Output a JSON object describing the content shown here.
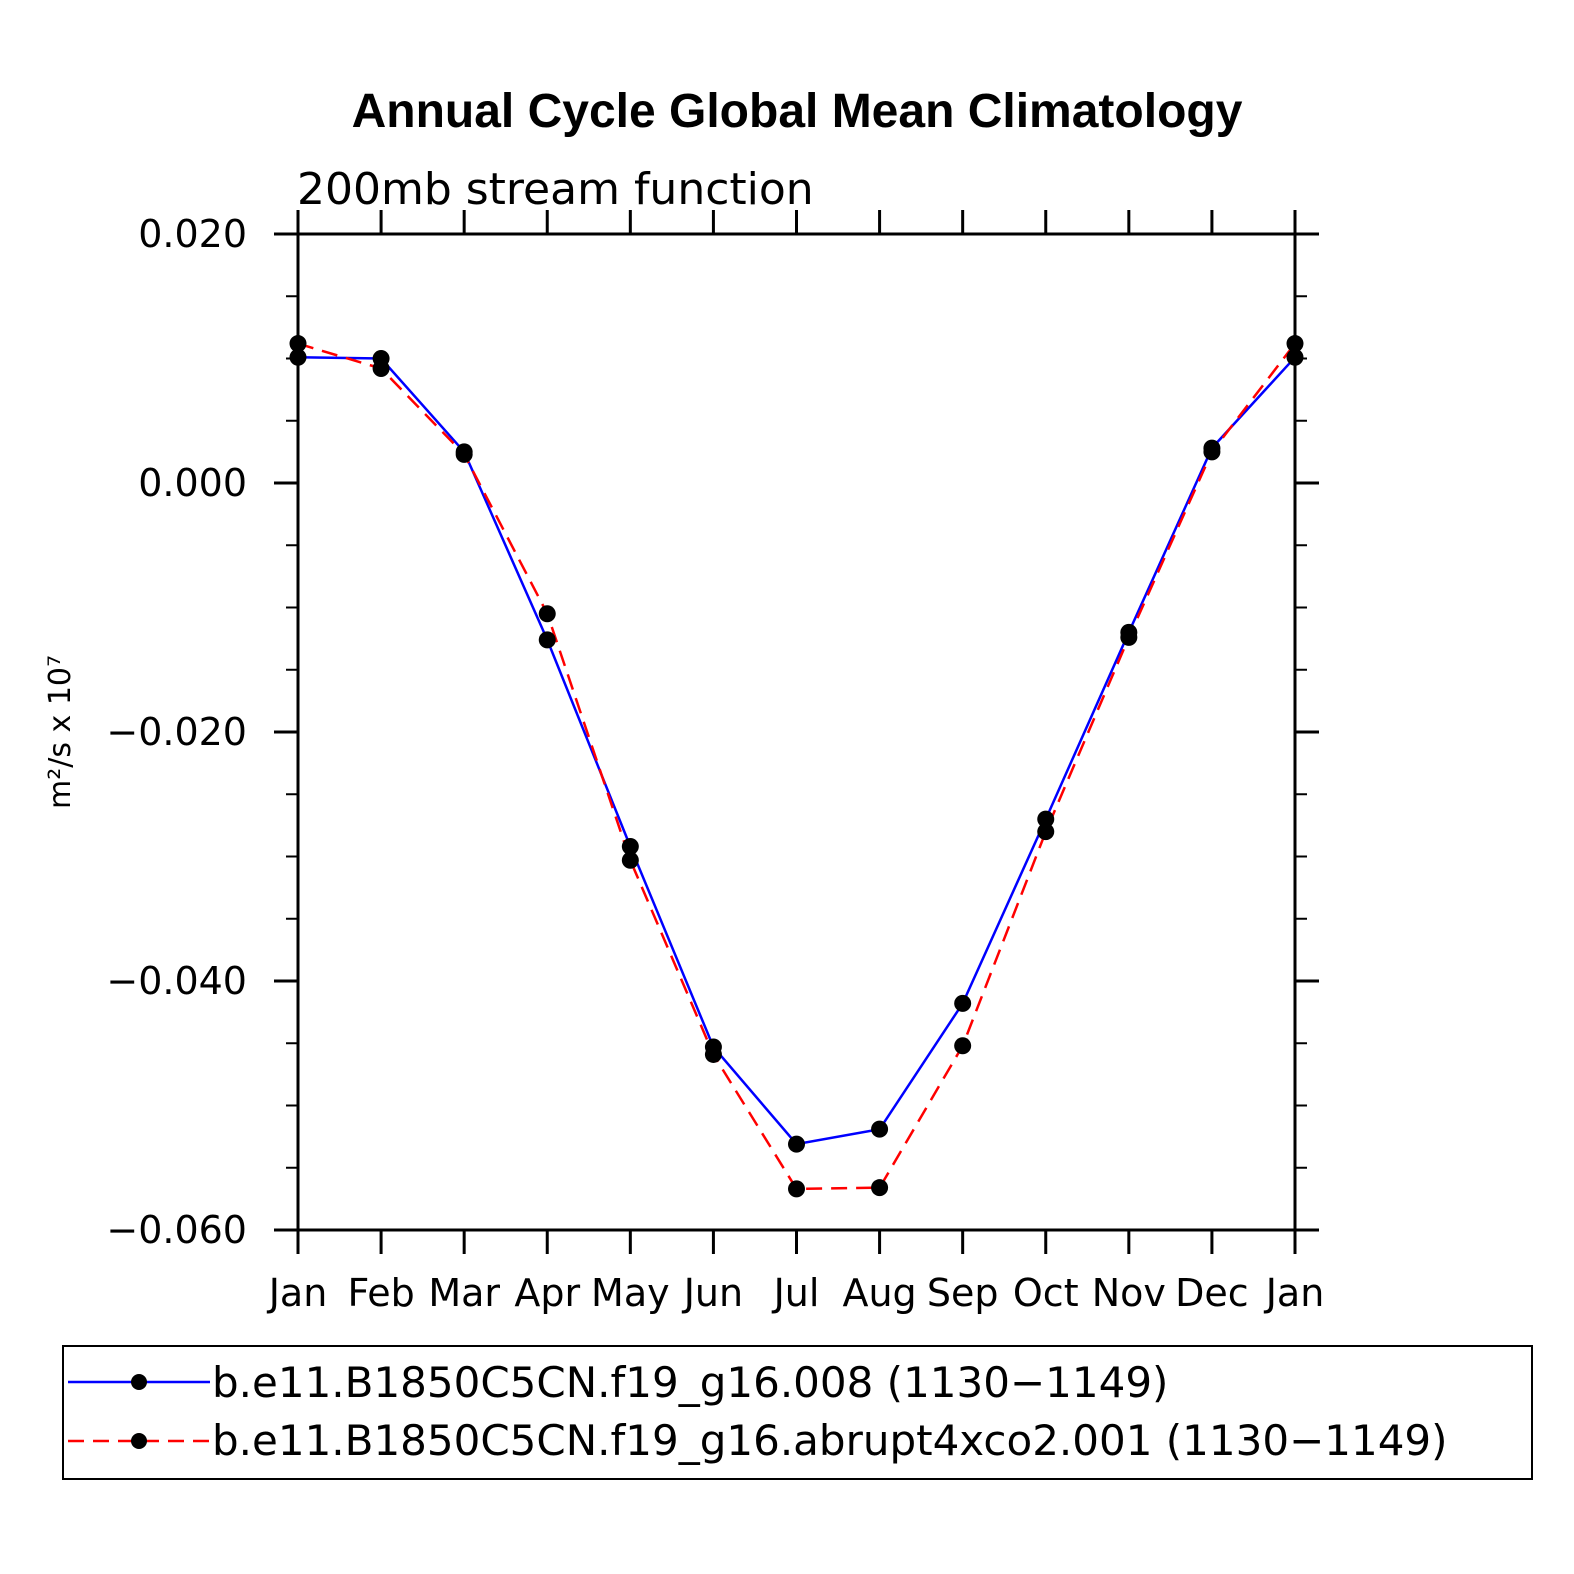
{
  "chart_data": {
    "type": "line",
    "title": "Annual Cycle Global Mean Climatology",
    "subtitle": "200mb stream function",
    "ylabel": "m²/s x 10⁷",
    "xlabel": "",
    "categories": [
      "Jan",
      "Feb",
      "Mar",
      "Apr",
      "May",
      "Jun",
      "Jul",
      "Aug",
      "Sep",
      "Oct",
      "Nov",
      "Dec",
      "Jan"
    ],
    "ylim": [
      -0.06,
      0.02
    ],
    "yticks": [
      0.02,
      0.0,
      -0.02,
      -0.04,
      -0.06
    ],
    "ytick_labels": [
      "0.020",
      "0.000",
      "−0.020",
      "−0.040",
      "−0.060"
    ],
    "grid": false,
    "legend_position": "bottom",
    "series": [
      {
        "name": "b.e11.B1850C5CN.f19_g16.008 (1130−1149)",
        "color": "#0000ff",
        "dash": "solid",
        "values": [
          0.0101,
          0.01,
          0.0025,
          -0.0126,
          -0.0292,
          -0.0453,
          -0.0531,
          -0.0519,
          -0.0418,
          -0.027,
          -0.012,
          0.0028,
          0.0101
        ]
      },
      {
        "name": "b.e11.B1850C5CN.f19_g16.abrupt4xco2.001 (1130−1149)",
        "color": "#ff0000",
        "dash": "dashed",
        "values": [
          0.0112,
          0.0092,
          0.0023,
          -0.0105,
          -0.0303,
          -0.0459,
          -0.0567,
          -0.0566,
          -0.0452,
          -0.028,
          -0.0124,
          0.0025,
          0.0112
        ]
      }
    ]
  }
}
